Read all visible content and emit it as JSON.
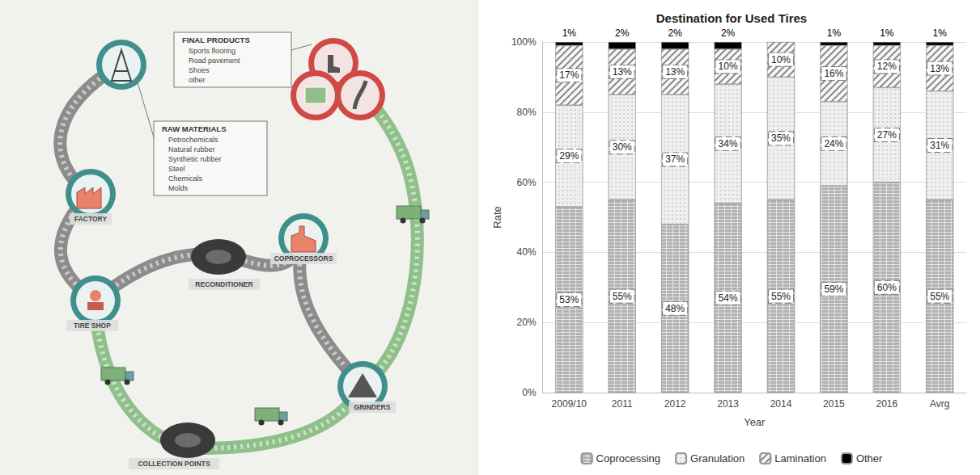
{
  "diagram": {
    "boxes": [
      {
        "title": "FINAL PRODUCTS",
        "items": [
          "Sports flooring",
          "Road pavement",
          "Shoes",
          "other"
        ]
      },
      {
        "title": "RAW MATERIALS",
        "items": [
          "Petrochemicals",
          "Natural rubber",
          "Synthetic rubber",
          "Steel",
          "Chemicals",
          "Molds"
        ]
      }
    ],
    "nodes": [
      {
        "label": "FACTORY"
      },
      {
        "label": "COPROCESSORS"
      },
      {
        "label": "RECONDITIONER"
      },
      {
        "label": "TIRE SHOP"
      },
      {
        "label": "GRINDERS"
      },
      {
        "label": "COLLECTION POINTS"
      }
    ]
  },
  "chart_data": {
    "type": "bar",
    "title": "Destination for Used Tires",
    "x_label": "Year",
    "y_label": "Rate",
    "categories": [
      "2009/10",
      "2011",
      "2012",
      "2013",
      "2014",
      "2015",
      "2016",
      "Avrg"
    ],
    "series": [
      {
        "name": "Coprocessing",
        "color": "#e3e3e3",
        "values": [
          53,
          55,
          48,
          54,
          55,
          59,
          60,
          55
        ],
        "value_labels": [
          "53%",
          "55%",
          "48%",
          "54%",
          "55%",
          "59%",
          "60%",
          "55%"
        ]
      },
      {
        "name": "Granulation",
        "color": "#efefef",
        "values": [
          29,
          30,
          37,
          34,
          35,
          24,
          27,
          31
        ],
        "value_labels": [
          "29%",
          "30%",
          "37%",
          "34%",
          "35%",
          "24%",
          "27%",
          "31%"
        ]
      },
      {
        "name": "Lamination",
        "color": "#f7f7f7",
        "values": [
          17,
          13,
          13,
          10,
          10,
          16,
          12,
          13
        ],
        "value_labels": [
          "17%",
          "13%",
          "13%",
          "10%",
          "10%",
          "16%",
          "12%",
          "13%"
        ]
      },
      {
        "name": "Other",
        "color": "#000000",
        "values": [
          1,
          2,
          2,
          2,
          null,
          1,
          1,
          1
        ],
        "value_labels": [
          "1%",
          "2%",
          "2%",
          "2%",
          null,
          "1%",
          "1%",
          "1%"
        ]
      }
    ],
    "ylim": [
      0,
      100
    ],
    "yticks": [
      {
        "value": 0,
        "label": "0%"
      },
      {
        "value": 20,
        "label": "20%"
      },
      {
        "value": 40,
        "label": "40%"
      },
      {
        "value": 60,
        "label": "60%"
      },
      {
        "value": 80,
        "label": "80%"
      },
      {
        "value": 100,
        "label": "100%"
      }
    ],
    "stacked": true,
    "data_labels": true,
    "grid": true,
    "legend": "bottom"
  }
}
